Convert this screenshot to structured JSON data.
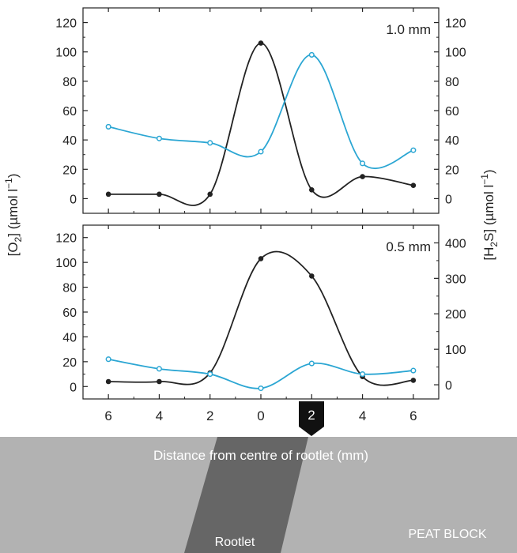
{
  "figure": {
    "y_left_label_parts": [
      "[O",
      "2",
      "] (µmol l",
      "−1",
      ")"
    ],
    "y_right_label_parts": [
      "[H",
      "2",
      "S] (µmol l",
      "−1",
      ")"
    ],
    "x_label": "Distance from centre of rootlet (mm)",
    "rootlet_label": "Rootlet",
    "peat_label": "PEAT BLOCK",
    "marker_label": "2"
  },
  "colors": {
    "o2_series": "#222222",
    "h2s_series": "#2ba6d3",
    "peat_block": "#b2b2b2",
    "rootlet": "#666666",
    "marker": "#111111"
  },
  "chart_data": [
    {
      "type": "line",
      "panel_label": "1.0 mm",
      "x_tick_labels": [
        "6",
        "4",
        "2",
        "0",
        "2",
        "4",
        "6"
      ],
      "x": [
        -6,
        -4,
        -2,
        0,
        2,
        4,
        6
      ],
      "ylim_left": [
        -10,
        130
      ],
      "yticks_left": [
        0,
        20,
        40,
        60,
        80,
        100,
        120
      ],
      "ylim_right": [
        -10,
        130
      ],
      "yticks_right": [
        0,
        20,
        40,
        60,
        80,
        100,
        120
      ],
      "series": [
        {
          "axis": "left",
          "values": [
            3,
            3,
            3,
            106,
            6,
            15,
            9
          ]
        },
        {
          "axis": "right",
          "values": [
            49,
            41,
            38,
            32,
            98,
            24,
            33
          ]
        }
      ]
    },
    {
      "type": "line",
      "panel_label": "0.5 mm",
      "x_tick_labels": [
        "6",
        "4",
        "2",
        "0",
        "2",
        "4",
        "6"
      ],
      "x": [
        -6,
        -4,
        -2,
        0,
        2,
        4,
        6
      ],
      "ylim_left": [
        -10,
        130
      ],
      "yticks_left": [
        0,
        20,
        40,
        60,
        80,
        100,
        120
      ],
      "ylim_right": [
        -40,
        450
      ],
      "yticks_right": [
        0,
        100,
        200,
        300,
        400
      ],
      "series": [
        {
          "axis": "left",
          "values": [
            4,
            4,
            11,
            103,
            89,
            8,
            5
          ]
        },
        {
          "axis": "right",
          "values": [
            72,
            45,
            30,
            -10,
            60,
            30,
            40
          ]
        }
      ]
    }
  ]
}
